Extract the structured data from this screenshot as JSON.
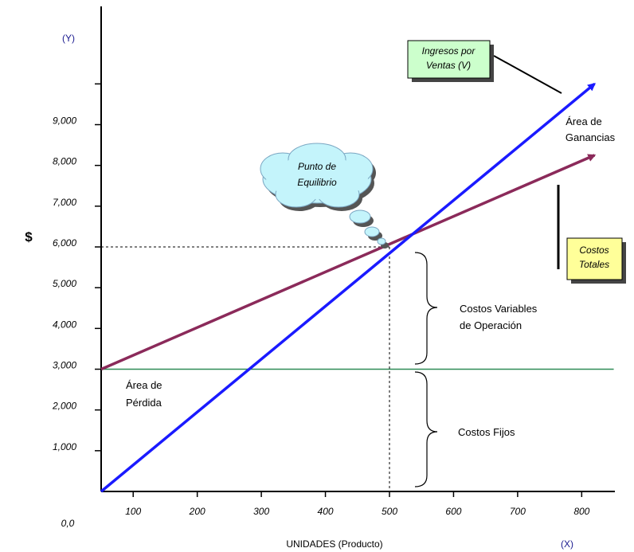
{
  "chart_data": {
    "type": "line",
    "title": "",
    "xlabel": "UNIDADES (Producto)",
    "x_axis_tag": "(X)",
    "ylabel": "$",
    "y_axis_tag": "(Y)",
    "xlim": [
      50,
      850
    ],
    "ylim": [
      0,
      10500
    ],
    "x_ticks": [
      100,
      200,
      300,
      400,
      500,
      600,
      700,
      800
    ],
    "x_tick_labels": [
      "100",
      "200",
      "300",
      "400",
      "500",
      "600",
      "700",
      "800"
    ],
    "y_ticks": [
      1000,
      2000,
      3000,
      4000,
      5000,
      6000,
      7000,
      8000,
      9000,
      10000
    ],
    "y_tick_labels": [
      "1,000",
      "2,000",
      "3,000",
      "4,000",
      "5,000",
      "6,000",
      "7,000",
      "8,000",
      "9,000",
      ""
    ],
    "origin_label": "0,0",
    "series": [
      {
        "name": "Ingresos por Ventas (V)",
        "color": "#1a1aff",
        "points": [
          [
            50,
            0
          ],
          [
            500,
            6000
          ],
          [
            820,
            10000
          ]
        ]
      },
      {
        "name": "Costos Totales",
        "color": "#8b2a5a",
        "points": [
          [
            50,
            3000
          ],
          [
            500,
            6000
          ],
          [
            820,
            8250
          ]
        ]
      },
      {
        "name": "",
        "color": "#2e8b57",
        "points": [
          [
            50,
            3000
          ],
          [
            850,
            3000
          ]
        ]
      }
    ],
    "breakeven": {
      "x": 500,
      "y": 6000,
      "label_line1": "Punto de",
      "label_line2": "Equilibrio"
    },
    "annotations": {
      "revenue_box": {
        "line1": "Ingresos por",
        "line2": "Ventas (V)",
        "color": "#ccffcc"
      },
      "cost_box": {
        "line1": "Costos",
        "line2": "Totales",
        "color": "#ffff99"
      },
      "profit_area": {
        "line1": "Área de",
        "line2": "Ganancias"
      },
      "loss_area": {
        "line1": "Área de",
        "line2": "Pérdida"
      },
      "variable_costs": {
        "line1": "Costos Variables",
        "line2": "de Operación"
      },
      "fixed_costs": {
        "line1": "Costos Fijos"
      }
    },
    "grid": false
  }
}
